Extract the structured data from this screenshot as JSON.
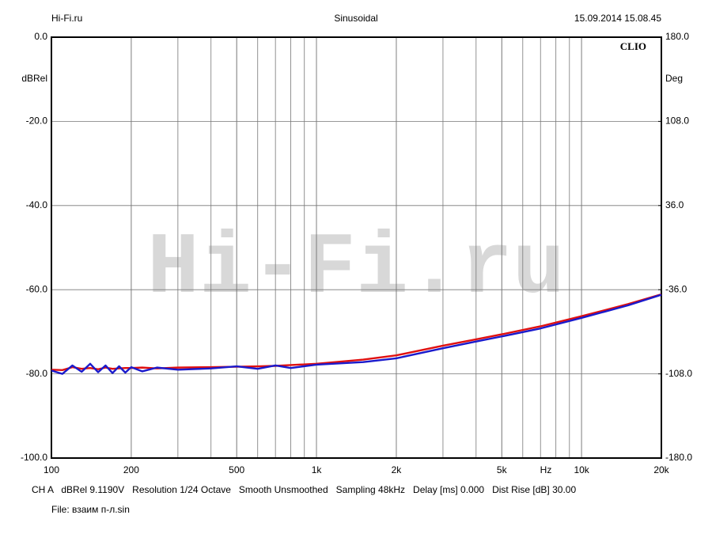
{
  "chart_data": {
    "type": "line",
    "header_left": "Hi-Fi.ru",
    "title": "Sinusoidal",
    "header_right": "15.09.2014 15.08.45",
    "brand": "CLIO",
    "watermark": "Hi-Fi.ru",
    "ylabel": "dBRel",
    "y2label": "Deg",
    "xlabel": "Hz",
    "footer": "CH A   dBRel 9.1190V   Resolution 1/24 Octave   Smooth Unsmoothed   Sampling 48kHz   Delay [ms] 0.000   Dist Rise [dB] 30.00",
    "file": "File: взаим п-л.sin",
    "xscale": "log",
    "grid": true,
    "xlim": [
      100,
      20000
    ],
    "xticks": [
      100,
      200,
      500,
      {
        "value": 1000,
        "label": "1k"
      },
      {
        "value": 2000,
        "label": "2k"
      },
      {
        "value": 5000,
        "label": "5k"
      },
      {
        "value": 10000,
        "label": "10k"
      },
      {
        "value": 20000,
        "label": "20k"
      }
    ],
    "ylim": [
      -100,
      0
    ],
    "yticks": [
      {
        "value": -100,
        "label": "-100.0"
      },
      {
        "value": -80,
        "label": "-80.0"
      },
      {
        "value": -60,
        "label": "-60.0"
      },
      {
        "value": -40,
        "label": "-40.0"
      },
      {
        "value": -20,
        "label": "-20.0"
      },
      {
        "value": 0,
        "label": "0.0"
      }
    ],
    "y2lim": [
      -180,
      180
    ],
    "y2ticks": [
      {
        "value": -180,
        "label": "-180.0"
      },
      {
        "value": -108,
        "label": "-108.0"
      },
      {
        "value": -36,
        "label": "-36.0"
      },
      {
        "value": 36,
        "label": "36.0"
      },
      {
        "value": 108,
        "label": "108.0"
      },
      {
        "value": 180,
        "label": "180.0"
      }
    ],
    "x": [
      100,
      110,
      120,
      130,
      140,
      150,
      160,
      170,
      180,
      190,
      200,
      220,
      250,
      300,
      400,
      500,
      600,
      700,
      800,
      1000,
      1500,
      2000,
      3000,
      4000,
      5000,
      7000,
      10000,
      15000,
      20000
    ],
    "series": [
      {
        "color": "#e01010",
        "values": [
          -79.0,
          -79.1,
          -78.4,
          -78.8,
          -78.6,
          -78.9,
          -78.5,
          -78.8,
          -78.7,
          -78.6,
          -78.6,
          -78.5,
          -78.7,
          -78.5,
          -78.4,
          -78.3,
          -78.2,
          -78.1,
          -77.9,
          -77.6,
          -76.6,
          -75.6,
          -73.3,
          -71.8,
          -70.6,
          -68.7,
          -66.3,
          -63.4,
          -61.1
        ]
      },
      {
        "color": "#1a1acc",
        "values": [
          -79.2,
          -80.0,
          -78.0,
          -79.5,
          -77.6,
          -79.6,
          -78.0,
          -79.8,
          -78.2,
          -79.7,
          -78.4,
          -79.4,
          -78.5,
          -79.0,
          -78.7,
          -78.2,
          -78.8,
          -78.0,
          -78.6,
          -77.8,
          -77.2,
          -76.3,
          -73.9,
          -72.3,
          -71.1,
          -69.2,
          -66.7,
          -63.7,
          -61.2
        ]
      }
    ]
  }
}
